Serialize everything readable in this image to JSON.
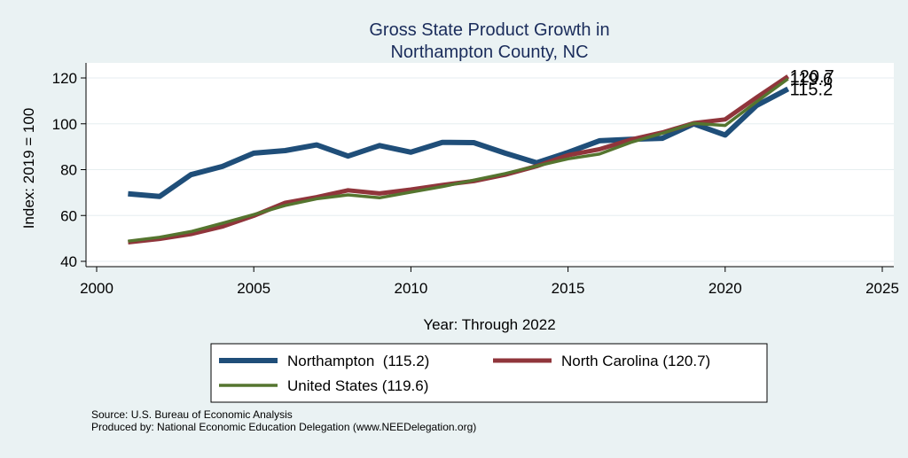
{
  "colors": {
    "background": "#eaf2f3",
    "plot_background": "#ffffff",
    "title": "#1a2c5b",
    "northampton": "#1f4e79",
    "north_carolina": "#90353b",
    "united_states": "#55752f",
    "text": "#000000"
  },
  "footer": {
    "source": "Source: U.S. Bureau of Economic Analysis",
    "produced": "Produced by: National Economic Education Delegation (www.NEEDelegation.org)"
  },
  "chart_data": {
    "type": "line",
    "title": [
      "Gross State Product Growth in",
      "Northampton County, NC"
    ],
    "xlabel": "Year: Through 2022",
    "ylabel": "Index: 2019 = 100",
    "xlim": [
      2000,
      2025
    ],
    "ylim": [
      40,
      120
    ],
    "xticks": [
      2000,
      2005,
      2010,
      2015,
      2020,
      2025
    ],
    "yticks": [
      40,
      60,
      80,
      100,
      120
    ],
    "grid": true,
    "x": [
      2001,
      2002,
      2003,
      2004,
      2005,
      2006,
      2007,
      2008,
      2009,
      2010,
      2011,
      2012,
      2013,
      2014,
      2015,
      2016,
      2017,
      2018,
      2019,
      2020,
      2021,
      2022
    ],
    "series": [
      {
        "name": "Northampton",
        "legend_label": "Northampton  (115.2)",
        "color_key": "northampton",
        "end_label": "115.2",
        "values": [
          69.5,
          68.3,
          77.8,
          81.4,
          87.2,
          88.3,
          90.8,
          85.9,
          90.5,
          87.6,
          91.9,
          91.8,
          87.2,
          83.0,
          87.5,
          92.6,
          93.2,
          93.7,
          100.0,
          95.1,
          108.0,
          115.2
        ]
      },
      {
        "name": "North Carolina",
        "legend_label": "North Carolina (120.7)",
        "color_key": "north_carolina",
        "end_label": "120.7",
        "values": [
          48.3,
          49.8,
          51.9,
          55.2,
          59.9,
          65.5,
          68.0,
          71.0,
          69.6,
          71.3,
          73.3,
          75.0,
          77.8,
          81.5,
          86.3,
          88.9,
          93.1,
          96.2,
          100.3,
          101.9,
          111.5,
          120.7
        ]
      },
      {
        "name": "United States",
        "legend_label": "United States (119.6)",
        "color_key": "united_states",
        "end_label": "119.6",
        "values": [
          48.8,
          50.5,
          53.0,
          56.6,
          60.4,
          64.4,
          67.3,
          69.0,
          67.7,
          70.2,
          72.6,
          75.4,
          78.3,
          81.6,
          84.7,
          86.8,
          91.9,
          95.9,
          100.2,
          99.3,
          109.6,
          119.6
        ]
      }
    ],
    "legend_position": "bottom"
  }
}
